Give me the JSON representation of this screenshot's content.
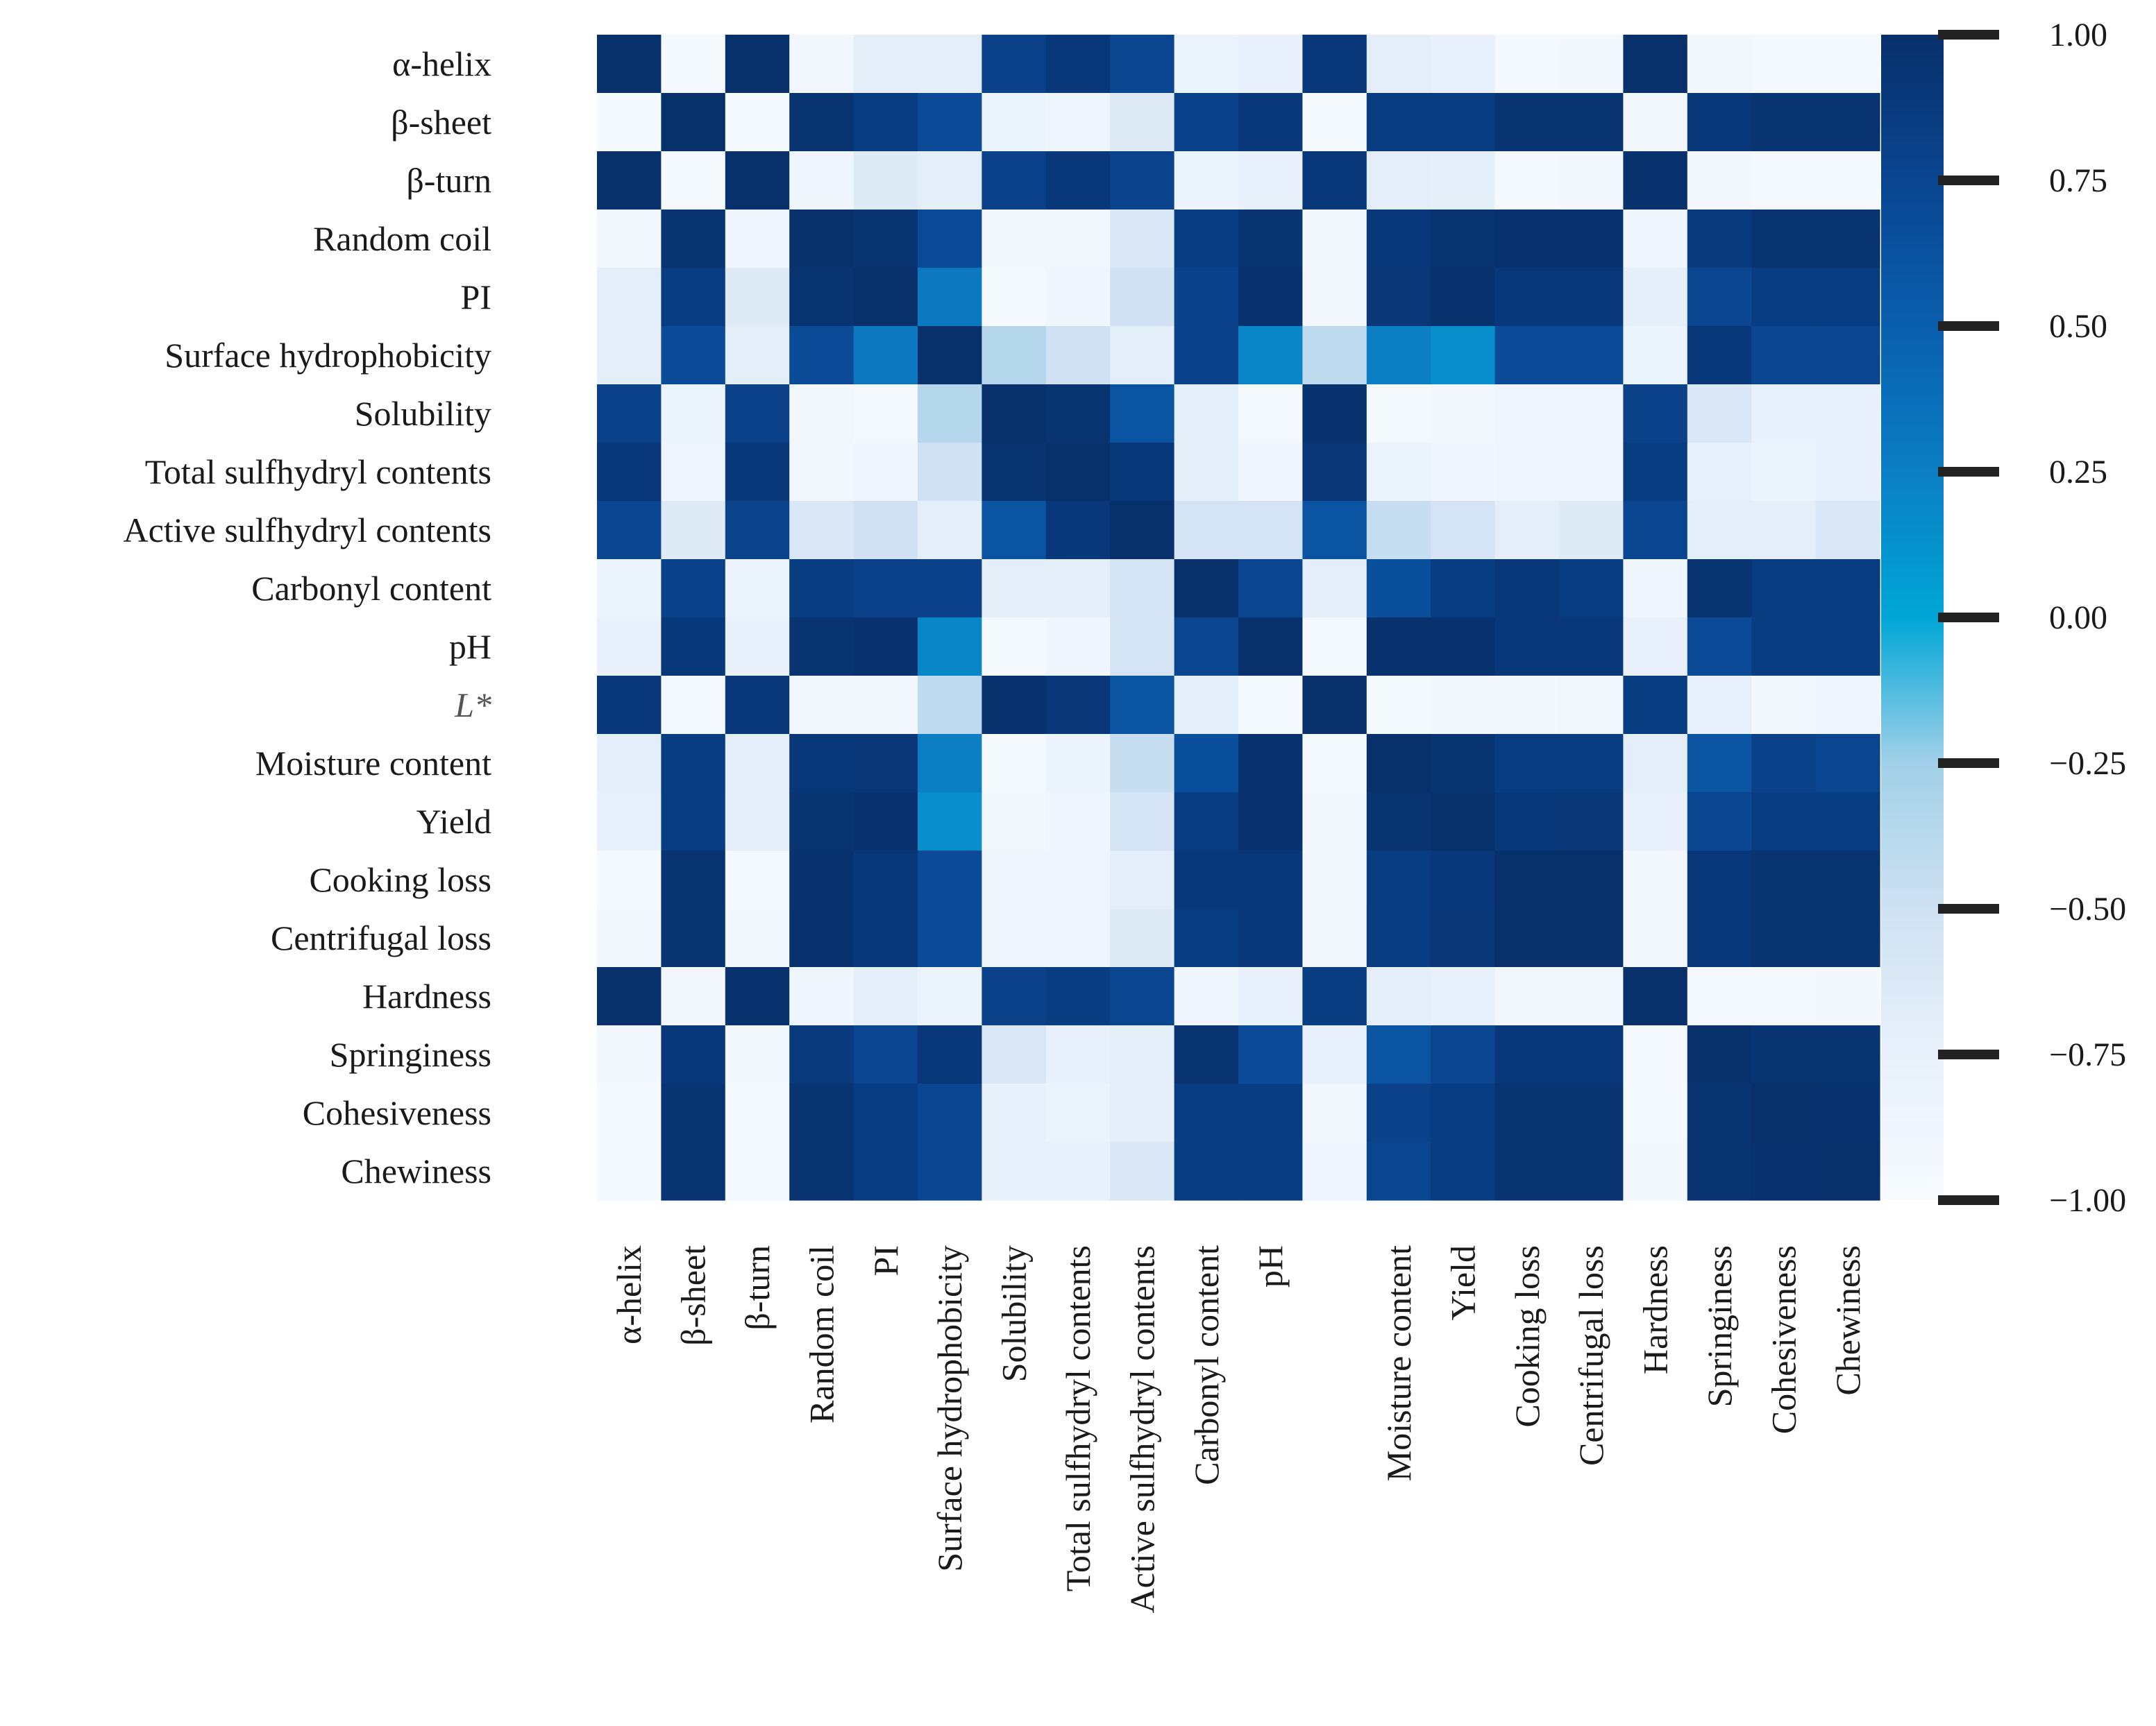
{
  "chart_data": {
    "type": "heatmap",
    "title": "",
    "xlabel": "",
    "ylabel": "",
    "row_labels": [
      "α-helix",
      "β-sheet",
      "β-turn",
      "Random coil",
      "PI",
      "Surface hydrophobicity",
      "Solubility",
      "Total sulfhydryl contents",
      "Active sulfhydryl contents",
      "Carbonyl content",
      "pH",
      "L*",
      "Moisture content",
      "Yield",
      "Cooking loss",
      "Centrifugal loss",
      "Hardness",
      "Springiness",
      "Cohesiveness",
      "Chewiness"
    ],
    "col_labels": [
      "α-helix",
      "β-sheet",
      "β-turn",
      "Random coil",
      "PI",
      "Surface hydrophobicity",
      "Solubility",
      "Total sulfhydryl contents",
      "Active sulfhydryl contents",
      "Carbonyl content",
      "pH",
      "",
      "Moisture content",
      "Yield",
      "Cooking loss",
      "Centrifugal loss",
      "Hardness",
      "Springiness",
      "Cohesiveness",
      "Chewiness"
    ],
    "italic_row_labels": [
      "L*"
    ],
    "values": [
      [
        1.0,
        -0.95,
        0.99,
        -0.9,
        -0.7,
        -0.7,
        0.8,
        0.9,
        0.75,
        -0.8,
        -0.75,
        0.9,
        -0.7,
        -0.75,
        -0.95,
        -0.92,
        0.99,
        -0.9,
        -0.95,
        -0.95
      ],
      [
        -0.95,
        1.0,
        -0.95,
        0.95,
        0.85,
        0.7,
        -0.8,
        -0.85,
        -0.65,
        0.8,
        0.9,
        -0.95,
        0.85,
        0.85,
        0.95,
        0.95,
        -0.9,
        0.9,
        0.95,
        0.95
      ],
      [
        0.99,
        -0.95,
        1.0,
        -0.88,
        -0.65,
        -0.7,
        0.8,
        0.9,
        0.78,
        -0.8,
        -0.75,
        0.9,
        -0.7,
        -0.72,
        -0.95,
        -0.92,
        0.98,
        -0.92,
        -0.95,
        -0.95
      ],
      [
        -0.9,
        0.95,
        -0.88,
        1.0,
        0.95,
        0.7,
        -0.9,
        -0.9,
        -0.6,
        0.85,
        0.95,
        -0.92,
        0.9,
        0.95,
        0.98,
        0.98,
        -0.85,
        0.88,
        0.95,
        0.95
      ],
      [
        -0.7,
        0.85,
        -0.65,
        0.95,
        1.0,
        0.3,
        -0.95,
        -0.88,
        -0.5,
        0.8,
        0.98,
        -0.93,
        0.92,
        0.98,
        0.9,
        0.9,
        -0.7,
        0.75,
        0.85,
        0.85
      ],
      [
        -0.7,
        0.7,
        -0.7,
        0.7,
        0.3,
        1.0,
        -0.35,
        -0.5,
        -0.7,
        0.8,
        0.2,
        -0.4,
        0.25,
        0.15,
        0.7,
        0.7,
        -0.8,
        0.9,
        0.75,
        0.75
      ],
      [
        0.8,
        -0.8,
        0.8,
        -0.9,
        -0.95,
        -0.35,
        1.0,
        0.95,
        0.6,
        -0.7,
        -0.95,
        0.98,
        -0.95,
        -0.93,
        -0.85,
        -0.85,
        0.8,
        -0.6,
        -0.75,
        -0.75
      ],
      [
        0.9,
        -0.85,
        0.9,
        -0.9,
        -0.88,
        -0.5,
        0.95,
        1.0,
        0.9,
        -0.7,
        -0.88,
        0.92,
        -0.8,
        -0.88,
        -0.85,
        -0.85,
        0.85,
        -0.75,
        -0.8,
        -0.75
      ],
      [
        0.75,
        -0.65,
        0.78,
        -0.6,
        -0.5,
        -0.7,
        0.6,
        0.9,
        1.0,
        -0.55,
        -0.55,
        0.6,
        -0.45,
        -0.55,
        -0.7,
        -0.65,
        0.75,
        -0.7,
        -0.7,
        -0.6
      ],
      [
        -0.8,
        0.8,
        -0.8,
        0.85,
        0.8,
        0.8,
        -0.7,
        -0.7,
        -0.55,
        1.0,
        0.75,
        -0.7,
        0.65,
        0.85,
        0.9,
        0.85,
        -0.88,
        0.95,
        0.85,
        0.85
      ],
      [
        -0.75,
        0.9,
        -0.75,
        0.95,
        0.98,
        0.2,
        -0.95,
        -0.88,
        -0.55,
        0.75,
        1.0,
        -0.95,
        0.98,
        0.98,
        0.9,
        0.9,
        -0.75,
        0.7,
        0.85,
        0.85
      ],
      [
        0.9,
        -0.95,
        0.9,
        -0.92,
        -0.93,
        -0.4,
        0.98,
        0.92,
        0.6,
        -0.7,
        -0.95,
        1.0,
        -0.95,
        -0.92,
        -0.92,
        -0.9,
        0.85,
        -0.75,
        -0.9,
        -0.85
      ],
      [
        -0.7,
        0.85,
        -0.7,
        0.9,
        0.92,
        0.25,
        -0.95,
        -0.8,
        -0.45,
        0.65,
        0.98,
        -0.95,
        1.0,
        0.95,
        0.85,
        0.85,
        -0.7,
        0.6,
        0.8,
        0.75
      ],
      [
        -0.75,
        0.85,
        -0.72,
        0.95,
        0.98,
        0.15,
        -0.93,
        -0.88,
        -0.55,
        0.85,
        0.98,
        -0.92,
        0.95,
        1.0,
        0.9,
        0.92,
        -0.75,
        0.75,
        0.85,
        0.85
      ],
      [
        -0.95,
        0.95,
        -0.95,
        0.98,
        0.9,
        0.7,
        -0.85,
        -0.85,
        -0.7,
        0.9,
        0.9,
        -0.92,
        0.85,
        0.9,
        1.0,
        1.0,
        -0.9,
        0.9,
        0.95,
        0.95
      ],
      [
        -0.92,
        0.95,
        -0.92,
        0.98,
        0.9,
        0.7,
        -0.85,
        -0.85,
        -0.65,
        0.85,
        0.9,
        -0.9,
        0.85,
        0.92,
        1.0,
        1.0,
        -0.9,
        0.9,
        0.95,
        0.95
      ],
      [
        0.99,
        -0.9,
        0.98,
        -0.85,
        -0.7,
        -0.8,
        0.8,
        0.85,
        0.75,
        -0.88,
        -0.75,
        0.85,
        -0.7,
        -0.75,
        -0.9,
        -0.9,
        1.0,
        -0.95,
        -0.95,
        -0.92
      ],
      [
        -0.9,
        0.9,
        -0.92,
        0.88,
        0.75,
        0.9,
        -0.6,
        -0.75,
        -0.7,
        0.95,
        0.7,
        -0.75,
        0.6,
        0.75,
        0.9,
        0.9,
        -0.95,
        1.0,
        0.95,
        0.95
      ],
      [
        -0.95,
        0.95,
        -0.95,
        0.95,
        0.85,
        0.75,
        -0.75,
        -0.8,
        -0.7,
        0.85,
        0.85,
        -0.9,
        0.8,
        0.85,
        0.95,
        0.95,
        -0.95,
        0.95,
        1.0,
        0.98
      ],
      [
        -0.95,
        0.95,
        -0.95,
        0.95,
        0.85,
        0.75,
        -0.75,
        -0.75,
        -0.6,
        0.85,
        0.85,
        -0.85,
        0.75,
        0.85,
        0.95,
        0.95,
        -0.92,
        0.95,
        0.98,
        1.0
      ]
    ],
    "value_range": [
      -1.0,
      1.0
    ],
    "colormap": "Blues-like",
    "colorbar": {
      "ticks": [
        1.0,
        0.75,
        0.5,
        0.25,
        0.0,
        -0.25,
        -0.5,
        -0.75,
        -1.0
      ],
      "tick_labels": [
        "1.00",
        "0.75",
        "0.50",
        "0.25",
        "0.00",
        "−0.25",
        "−0.50",
        "−0.75",
        "−1.00"
      ],
      "placement": "right"
    },
    "grid": false,
    "colors": {
      "low": "#f7fbff",
      "mid": "#00a6d6",
      "high": "#08306b"
    }
  }
}
